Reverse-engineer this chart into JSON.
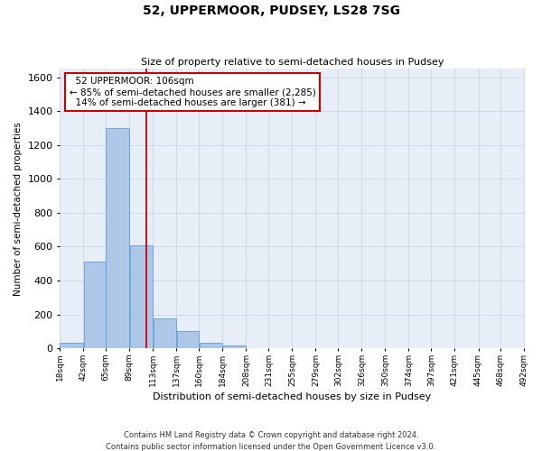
{
  "title1": "52, UPPERMOOR, PUDSEY, LS28 7SG",
  "title2": "Size of property relative to semi-detached houses in Pudsey",
  "xlabel": "Distribution of semi-detached houses by size in Pudsey",
  "ylabel": "Number of semi-detached properties",
  "footer1": "Contains HM Land Registry data © Crown copyright and database right 2024.",
  "footer2": "Contains public sector information licensed under the Open Government Licence v3.0.",
  "annotation_title": "52 UPPERMOOR: 106sqm",
  "annotation_line1": "← 85% of semi-detached houses are smaller (2,285)",
  "annotation_line2": "14% of semi-detached houses are larger (381) →",
  "property_size": 106,
  "bin_edges": [
    18,
    42,
    65,
    89,
    113,
    137,
    160,
    184,
    208,
    231,
    255,
    279,
    302,
    326,
    350,
    374,
    397,
    421,
    445,
    468,
    492
  ],
  "bar_heights": [
    35,
    510,
    1300,
    610,
    175,
    100,
    30,
    18,
    0,
    0,
    0,
    0,
    0,
    0,
    0,
    0,
    0,
    0,
    0,
    0
  ],
  "bar_color": "#aec6e8",
  "bar_edge_color": "#5f9fd4",
  "grid_color": "#d0d8e8",
  "background_color": "#e8eef8",
  "vline_color": "#cc0000",
  "annotation_box_edge": "#cc0000",
  "ylim": [
    0,
    1650
  ],
  "yticks": [
    0,
    200,
    400,
    600,
    800,
    1000,
    1200,
    1400,
    1600
  ]
}
